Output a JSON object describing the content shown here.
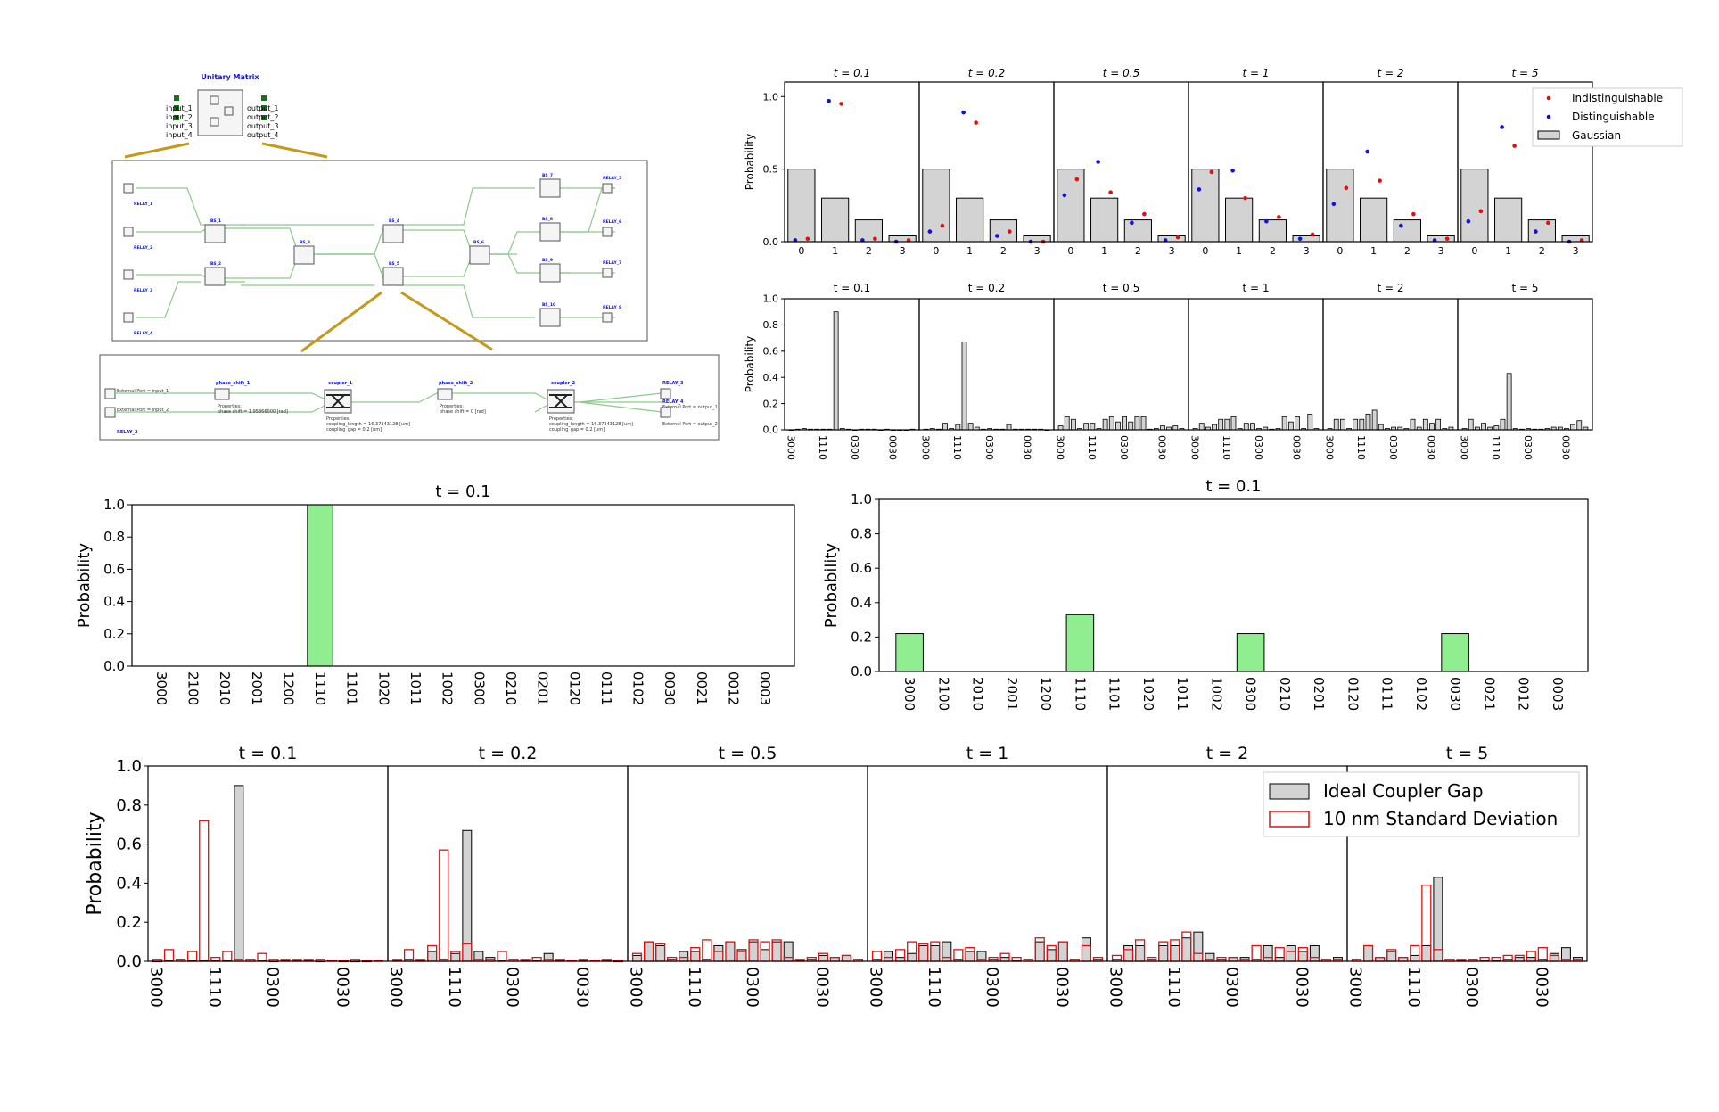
{
  "circuit": {
    "title": "Unitary Matrix",
    "inputs": [
      "input_1",
      "input_2",
      "input_3",
      "input_4"
    ],
    "outputs": [
      "output_1",
      "output_2",
      "output_3",
      "output_4"
    ],
    "beamsplitters": [
      "BS_1",
      "BS_2",
      "BS_3",
      "BS_4",
      "BS_5",
      "BS_6",
      "BS_7",
      "BS_8",
      "BS_9",
      "BS_10"
    ],
    "relays_left": [
      "RELAY_1",
      "RELAY_2",
      "RELAY_3",
      "RELAY_4"
    ],
    "relays_right": [
      "RELAY_5",
      "RELAY_6",
      "RELAY_7",
      "RELAY_8"
    ],
    "detail": {
      "phase_shift_1": "phase_shift_1",
      "phase_shift_2": "phase_shift_2",
      "coupler_1": "coupler_1",
      "coupler_2": "coupler_2",
      "relay_3": "RELAY_3",
      "relay_4": "RELAY_4",
      "relay_2": "RELAY_2",
      "phase_prop_1": "phase shift = 1.95866000 [rad]",
      "phase_prop_2": "phase shift = 0 [rad]",
      "coupler_prop_1a": "coupling_length = 16.37343128 [um]",
      "coupler_prop_1b": "coupling_gap = 0.2 [um]",
      "coupler_prop_2a": "coupling_length = 16.37343128 [um]",
      "coupler_prop_2b": "coupling_gap = 0.2 [um]",
      "ext_in_1": "External Port = input_1",
      "ext_in_2": "External Port = input_2",
      "ext_out_1": "External Port = output_1",
      "ext_out_2": "External Port = output_2",
      "properties": "Properties:"
    }
  },
  "chart_data": [
    {
      "id": "panel_a",
      "type": "bar",
      "times": [
        "t = 0.1",
        "t = 0.2",
        "t = 0.5",
        "t = 1",
        "t = 2",
        "t = 5"
      ],
      "categories": [
        "0",
        "1",
        "2",
        "3"
      ],
      "ylabel": "Probability",
      "ylim": [
        0,
        1.1
      ],
      "yticks": [
        "0.0",
        "0.5",
        "1.0"
      ],
      "legend": [
        "Indistinguishable",
        "Distinguishable",
        "Gaussian"
      ],
      "colors": {
        "indistinguishable": "#e01010",
        "distinguishable": "#1010e0",
        "bar": "#d3d3d3"
      },
      "gaussian": [
        0.5,
        0.3,
        0.15,
        0.04
      ],
      "indistinguishable": [
        [
          0.02,
          0.95,
          0.02,
          0.01
        ],
        [
          0.11,
          0.82,
          0.07,
          0.0
        ],
        [
          0.43,
          0.34,
          0.19,
          0.03
        ],
        [
          0.48,
          0.3,
          0.17,
          0.05
        ],
        [
          0.37,
          0.42,
          0.19,
          0.02
        ],
        [
          0.21,
          0.66,
          0.13,
          0.01
        ]
      ],
      "distinguishable": [
        [
          0.01,
          0.97,
          0.01,
          0.0
        ],
        [
          0.07,
          0.89,
          0.04,
          0.0
        ],
        [
          0.32,
          0.55,
          0.13,
          0.01
        ],
        [
          0.36,
          0.49,
          0.14,
          0.02
        ],
        [
          0.26,
          0.62,
          0.11,
          0.01
        ],
        [
          0.14,
          0.79,
          0.07,
          0.0
        ]
      ]
    },
    {
      "id": "panel_b",
      "type": "bar",
      "times": [
        "t = 0.1",
        "t = 0.2",
        "t = 0.5",
        "t = 1",
        "t = 2",
        "t = 5"
      ],
      "xticklabels": [
        "3000",
        "1110",
        "0300",
        "0030"
      ],
      "ylabel": "Probability",
      "ylim": [
        0,
        1.0
      ],
      "yticks": [
        "0.0",
        "0.2",
        "0.4",
        "0.6",
        "0.8",
        "1.0"
      ],
      "values": [
        [
          0,
          0.005,
          0.01,
          0.005,
          0.005,
          0.005,
          0.005,
          0.9,
          0.01,
          0.005,
          0,
          0.005,
          0.005,
          0.005,
          0,
          0.005,
          0,
          0,
          0,
          0.005
        ],
        [
          0.005,
          0.01,
          0.005,
          0.05,
          0.01,
          0.04,
          0.67,
          0.05,
          0.02,
          0.005,
          0.01,
          0.005,
          0.005,
          0.04,
          0.005,
          0.005,
          0.005,
          0.005,
          0.005,
          0
        ],
        [
          0.03,
          0.1,
          0.08,
          0.01,
          0.05,
          0.05,
          0.01,
          0.08,
          0.1,
          0.06,
          0.1,
          0.06,
          0.1,
          0.1,
          0.005,
          0.01,
          0.03,
          0.02,
          0.03,
          0.01
        ],
        [
          0.01,
          0.05,
          0.02,
          0.04,
          0.08,
          0.08,
          0.1,
          0.01,
          0.05,
          0.05,
          0.01,
          0.02,
          0.005,
          0.01,
          0.1,
          0.06,
          0.1,
          0.01,
          0.12,
          0.01
        ],
        [
          0.01,
          0.08,
          0.08,
          0.01,
          0.08,
          0.08,
          0.12,
          0.15,
          0.04,
          0.01,
          0.02,
          0.02,
          0.01,
          0.08,
          0.02,
          0.08,
          0.05,
          0.08,
          0.01,
          0.02
        ],
        [
          0.01,
          0.08,
          0.02,
          0.05,
          0.02,
          0.03,
          0.08,
          0.43,
          0.01,
          0.005,
          0.01,
          0.005,
          0.005,
          0.01,
          0.02,
          0.02,
          0.01,
          0.04,
          0.07,
          0.02
        ]
      ]
    },
    {
      "id": "panel_c",
      "type": "bar",
      "title": "t = 0.1",
      "ylabel": "Probability",
      "ylim": [
        0,
        1.0
      ],
      "yticks": [
        "0.0",
        "0.2",
        "0.4",
        "0.6",
        "0.8",
        "1.0"
      ],
      "categories": [
        "3000",
        "2100",
        "2010",
        "2001",
        "1200",
        "1110",
        "1101",
        "1020",
        "1011",
        "1002",
        "0300",
        "0210",
        "0201",
        "0120",
        "0111",
        "0102",
        "0030",
        "0021",
        "0012",
        "0003"
      ],
      "values": [
        0,
        0,
        0,
        0,
        0,
        1.0,
        0,
        0,
        0,
        0,
        0,
        0,
        0,
        0,
        0,
        0,
        0,
        0,
        0,
        0
      ],
      "bar_color": "#90ee90"
    },
    {
      "id": "panel_d",
      "type": "bar",
      "title": "t = 0.1",
      "ylabel": "Probability",
      "ylim": [
        0,
        1.0
      ],
      "yticks": [
        "0.0",
        "0.2",
        "0.4",
        "0.6",
        "0.8",
        "1.0"
      ],
      "categories": [
        "3000",
        "2100",
        "2010",
        "2001",
        "1200",
        "1110",
        "1101",
        "1020",
        "1011",
        "1002",
        "0300",
        "0210",
        "0201",
        "0120",
        "0111",
        "0102",
        "0030",
        "0021",
        "0012",
        "0003"
      ],
      "values": [
        0.22,
        0,
        0,
        0,
        0,
        0.33,
        0,
        0,
        0,
        0,
        0.22,
        0,
        0,
        0,
        0,
        0,
        0.22,
        0,
        0,
        0
      ],
      "bar_color": "#90ee90"
    },
    {
      "id": "panel_e",
      "type": "bar",
      "times": [
        "t = 0.1",
        "t = 0.2",
        "t = 0.5",
        "t = 1",
        "t = 2",
        "t = 5"
      ],
      "xticklabels": [
        "3000",
        "1110",
        "0300",
        "0030"
      ],
      "ylabel": "Probability",
      "ylim": [
        0,
        1.0
      ],
      "yticks": [
        "0.0",
        "0.2",
        "0.4",
        "0.6",
        "0.8",
        "1.0"
      ],
      "legend": [
        "Ideal Coupler Gap",
        "10 nm Standard Deviation"
      ],
      "colors": {
        "ideal": "#d3d3d3",
        "deviation": "#e01010"
      },
      "ideal": [
        [
          0,
          0.005,
          0.01,
          0.005,
          0.005,
          0.005,
          0.005,
          0.9,
          0.01,
          0.005,
          0,
          0.005,
          0.005,
          0.005,
          0,
          0.005,
          0,
          0,
          0,
          0.005
        ],
        [
          0.005,
          0.01,
          0.005,
          0.05,
          0.01,
          0.04,
          0.67,
          0.05,
          0.02,
          0.005,
          0.01,
          0.005,
          0.005,
          0.04,
          0.005,
          0.005,
          0.005,
          0.005,
          0.005,
          0
        ],
        [
          0.03,
          0.1,
          0.08,
          0.01,
          0.05,
          0.05,
          0.01,
          0.08,
          0.1,
          0.06,
          0.1,
          0.06,
          0.1,
          0.1,
          0.005,
          0.01,
          0.03,
          0.02,
          0.03,
          0.01
        ],
        [
          0.01,
          0.05,
          0.02,
          0.04,
          0.08,
          0.08,
          0.1,
          0.01,
          0.05,
          0.05,
          0.01,
          0.02,
          0.005,
          0.01,
          0.1,
          0.06,
          0.1,
          0.01,
          0.12,
          0.01
        ],
        [
          0.01,
          0.08,
          0.08,
          0.01,
          0.08,
          0.08,
          0.12,
          0.15,
          0.04,
          0.01,
          0.02,
          0.02,
          0.01,
          0.08,
          0.02,
          0.08,
          0.05,
          0.08,
          0.01,
          0.02
        ],
        [
          0.01,
          0.08,
          0.02,
          0.05,
          0.02,
          0.03,
          0.08,
          0.43,
          0.01,
          0.005,
          0.01,
          0.005,
          0.005,
          0.01,
          0.02,
          0.02,
          0.01,
          0.04,
          0.07,
          0.02
        ]
      ],
      "deviation": [
        [
          0.01,
          0.06,
          0.01,
          0.05,
          0.72,
          0.02,
          0.05,
          0.01,
          0.01,
          0.04,
          0.01,
          0.01,
          0.01,
          0.01,
          0.01,
          0.005,
          0.005,
          0.01,
          0.005,
          0.005
        ],
        [
          0.01,
          0.06,
          0.01,
          0.08,
          0.57,
          0.05,
          0.09,
          0.01,
          0.01,
          0.05,
          0.01,
          0.01,
          0.02,
          0.01,
          0.01,
          0.005,
          0.01,
          0.005,
          0.01,
          0.005
        ],
        [
          0.04,
          0.1,
          0.09,
          0.02,
          0.02,
          0.07,
          0.11,
          0.05,
          0.1,
          0.05,
          0.11,
          0.1,
          0.11,
          0.02,
          0.01,
          0.02,
          0.04,
          0.02,
          0.03,
          0.01
        ],
        [
          0.05,
          0.02,
          0.06,
          0.1,
          0.09,
          0.1,
          0.02,
          0.06,
          0.07,
          0.01,
          0.02,
          0.04,
          0.02,
          0.01,
          0.12,
          0.08,
          0.1,
          0.01,
          0.08,
          0.02
        ],
        [
          0.03,
          0.06,
          0.11,
          0.02,
          0.1,
          0.11,
          0.15,
          0.04,
          0.01,
          0.02,
          0.02,
          0.01,
          0.08,
          0.02,
          0.07,
          0.05,
          0.07,
          0.02,
          0.01,
          0.01
        ],
        [
          0.01,
          0.08,
          0.02,
          0.06,
          0.02,
          0.08,
          0.39,
          0.06,
          0.01,
          0.01,
          0.01,
          0.02,
          0.02,
          0.03,
          0.03,
          0.05,
          0.07,
          0.03,
          0.01,
          0.01
        ]
      ]
    }
  ]
}
